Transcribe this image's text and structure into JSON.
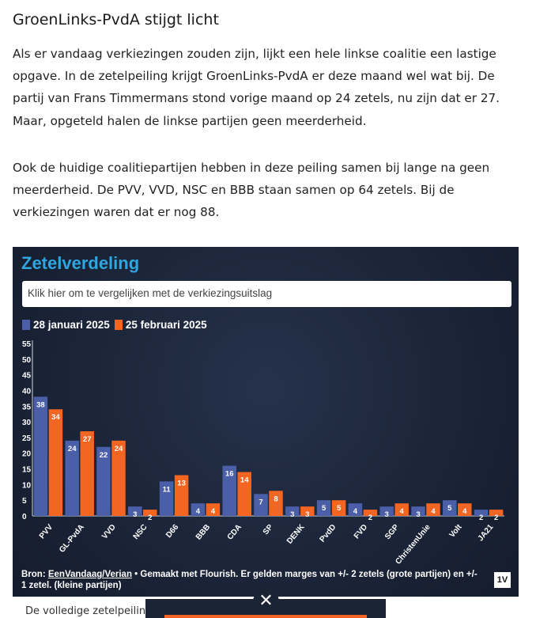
{
  "article": {
    "heading": "GroenLinks-PvdA stijgt licht",
    "paragraph1": "Als er vandaag verkiezingen zouden zijn, lijkt een hele linkse coalitie een lastige opgave. In de zetelpeiling krijgt GroenLinks-PvdA er deze maand wel wat bij. De partij van Frans Timmermans stond vorige maand op 24 zetels, nu zijn dat er 27. Maar, opgeteld halen de linkse partijen geen meerderheid.",
    "paragraph2": "Ook de huidige coalitiepartijen hebben in deze peiling samen bij lange na geen meerderheid. De PVV, VVD, NSC en BBB staan samen op 64 zetels. Bij de verkiezingen waren dat er nog 88.",
    "bottom_text": "De volledige zetelpeiling va"
  },
  "widget": {
    "title": "Zetelverdeling",
    "compare_button": "Klik hier om te vergelijken met de verkiezingsuitslag",
    "footer_source_prefix": "Bron: ",
    "footer_source_link": "EenVandaag/Verian",
    "footer_rest": " • Gemaakt met Flourish. Er gelden marges van +/- 2 zetels (grote partijen) en +/- 1 zetel. (kleine partijen)",
    "badge": "1V",
    "close_symbol": "✕"
  },
  "colors": {
    "series1": "#4a5fa8",
    "series2": "#f26522",
    "title": "#2fa6e0"
  },
  "chart_data": {
    "type": "bar",
    "categories": [
      "PVV",
      "GL-PvdA",
      "VVD",
      "NSC",
      "D66",
      "BBB",
      "CDA",
      "SP",
      "DENK",
      "PvdD",
      "FVD",
      "SGP",
      "ChristenUnie",
      "Volt",
      "JA21"
    ],
    "series": [
      {
        "name": "28 januari 2025",
        "values": [
          38,
          24,
          22,
          3,
          11,
          4,
          16,
          7,
          3,
          5,
          4,
          3,
          3,
          5,
          2
        ]
      },
      {
        "name": "25 februari 2025",
        "values": [
          34,
          27,
          24,
          2,
          13,
          4,
          14,
          8,
          3,
          5,
          2,
          4,
          4,
          4,
          2
        ]
      }
    ],
    "ylim": [
      0,
      55
    ],
    "yticks": [
      0,
      5,
      10,
      15,
      20,
      25,
      30,
      35,
      40,
      45,
      50,
      55
    ],
    "legend_position": "top-left",
    "grid": false
  }
}
